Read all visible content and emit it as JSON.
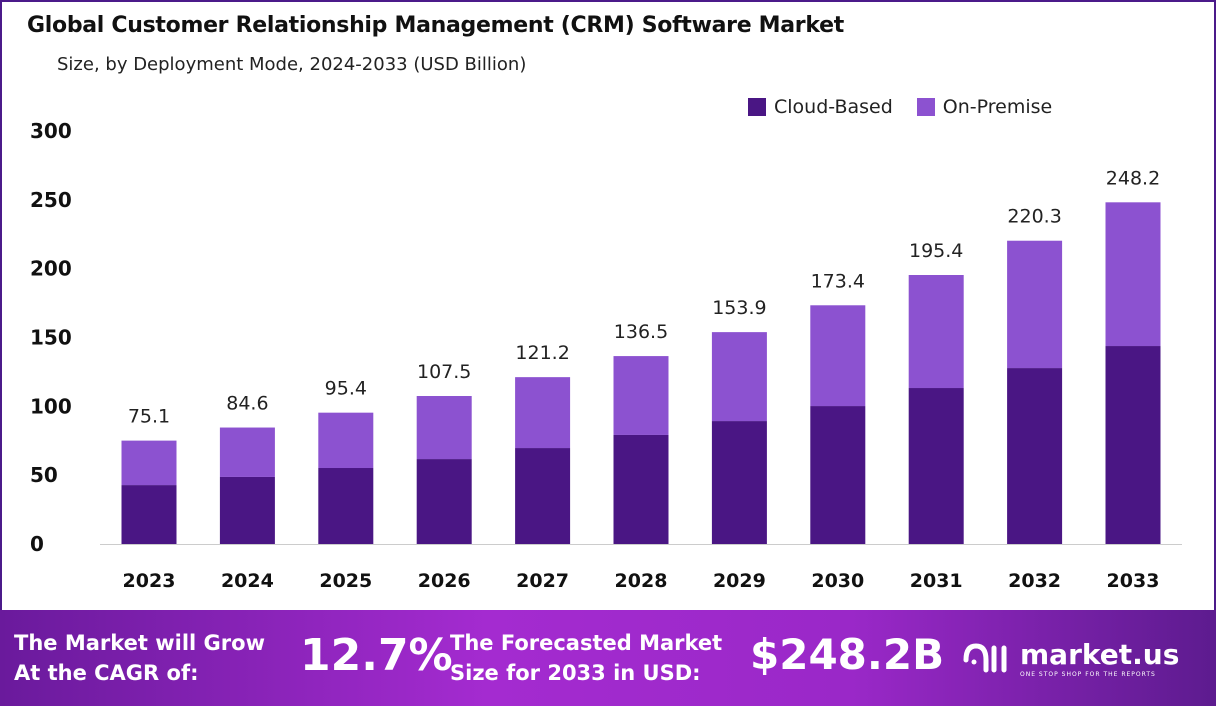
{
  "chart_data": {
    "type": "bar",
    "stacked": true,
    "title": "Global Customer Relationship Management (CRM) Software Market",
    "subtitle": "Size, by Deployment Mode, 2024-2033 (USD Billion)",
    "categories": [
      "2023",
      "2024",
      "2025",
      "2026",
      "2027",
      "2028",
      "2029",
      "2030",
      "2031",
      "2032",
      "2033"
    ],
    "series": [
      {
        "name": "Cloud-Based",
        "color": "#4a1684",
        "values": [
          42.8,
          48.7,
          55.2,
          61.7,
          69.7,
          79.2,
          89.3,
          100.2,
          113.3,
          127.8,
          143.8
        ]
      },
      {
        "name": "On-Premise",
        "color": "#8c52d0",
        "values": [
          32.3,
          35.9,
          40.2,
          45.8,
          51.5,
          57.3,
          64.6,
          73.2,
          82.1,
          92.5,
          104.4
        ]
      }
    ],
    "totals": [
      "75.1",
      "84.6",
      "95.4",
      "107.5",
      "121.2",
      "136.5",
      "153.9",
      "173.4",
      "195.4",
      "220.3",
      "248.2"
    ],
    "ylim": [
      0,
      300
    ],
    "yticks": [
      "0",
      "50",
      "100",
      "150",
      "200",
      "250",
      "300"
    ],
    "grid": false,
    "legend": "top-right"
  },
  "banner": {
    "cagr_label_1": "The Market will Grow",
    "cagr_label_2": "At the CAGR of:",
    "cagr_value": "12.7%",
    "forecast_label_1": "The Forecasted Market",
    "forecast_label_2": "Size for 2033 in USD:",
    "forecast_value": "$248.2B",
    "logo_text": "market.us",
    "logo_tagline": "ONE STOP SHOP FOR THE REPORTS"
  }
}
